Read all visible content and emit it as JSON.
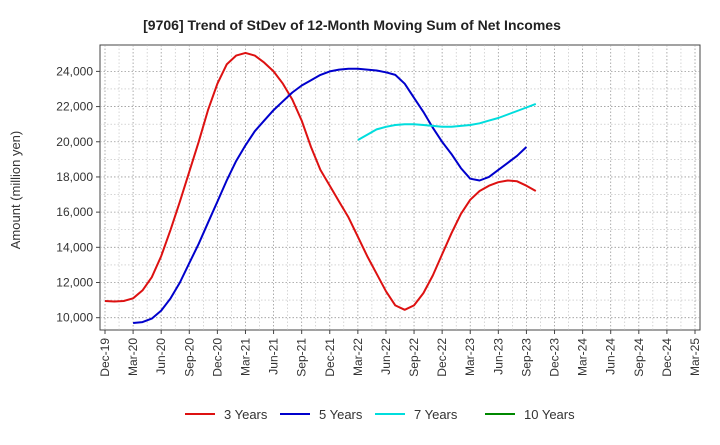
{
  "chart_data": {
    "type": "line",
    "title": "[9706]  Trend of StDev of 12-Month Moving Sum of Net Incomes",
    "ylabel": "Amount (million yen)",
    "xlabel": "",
    "ylim": [
      9300,
      25500
    ],
    "yticks": [
      10000,
      12000,
      14000,
      16000,
      18000,
      20000,
      22000,
      24000
    ],
    "ytick_labels": [
      "10,000",
      "12,000",
      "14,000",
      "16,000",
      "18,000",
      "20,000",
      "22,000",
      "24,000"
    ],
    "x_categories": [
      "Dec-19",
      "Mar-20",
      "Jun-20",
      "Sep-20",
      "Dec-20",
      "Mar-21",
      "Jun-21",
      "Sep-21",
      "Dec-21",
      "Mar-22",
      "Jun-22",
      "Sep-22",
      "Dec-22",
      "Mar-23",
      "Jun-23",
      "Sep-23",
      "Dec-23",
      "Mar-24",
      "Jun-24",
      "Sep-24",
      "Dec-24",
      "Mar-25"
    ],
    "grid": true,
    "legend_position": "bottom",
    "series": [
      {
        "name": "3 Years",
        "color": "#dd1111",
        "start_index": 0,
        "values": [
          10950,
          10920,
          10950,
          11100,
          11550,
          12300,
          13500,
          15000,
          16600,
          18300,
          20000,
          21800,
          23300,
          24400,
          24900,
          25050,
          24900,
          24500,
          24000,
          23300,
          22400,
          21200,
          19700,
          18400,
          17500,
          16600,
          15700,
          14600,
          13500,
          12500,
          11500,
          10700,
          10450,
          10700,
          11400,
          12400,
          13600,
          14800,
          15900,
          16700,
          17200,
          17500,
          17700,
          17800,
          17750,
          17500,
          17200
        ]
      },
      {
        "name": "5 Years",
        "color": "#0000cc",
        "start_index": 3,
        "values": [
          9700,
          9750,
          9950,
          10400,
          11100,
          12000,
          13100,
          14200,
          15400,
          16600,
          17800,
          18900,
          19800,
          20600,
          21200,
          21800,
          22300,
          22800,
          23200,
          23500,
          23800,
          24000,
          24100,
          24150,
          24150,
          24100,
          24050,
          23950,
          23800,
          23300,
          22500,
          21700,
          20800,
          20000,
          19300,
          18500,
          17900,
          17800,
          18000,
          18400,
          18800,
          19200,
          19700
        ]
      },
      {
        "name": "7 Years",
        "color": "#00dddd",
        "start_index": 27,
        "values": [
          20100,
          20400,
          20700,
          20850,
          20950,
          21000,
          21000,
          20950,
          20900,
          20850,
          20850,
          20900,
          20950,
          21050,
          21200,
          21350,
          21550,
          21750,
          21950,
          22150
        ]
      },
      {
        "name": "10 Years",
        "color": "#008800",
        "start_index": 0,
        "values": []
      }
    ]
  }
}
